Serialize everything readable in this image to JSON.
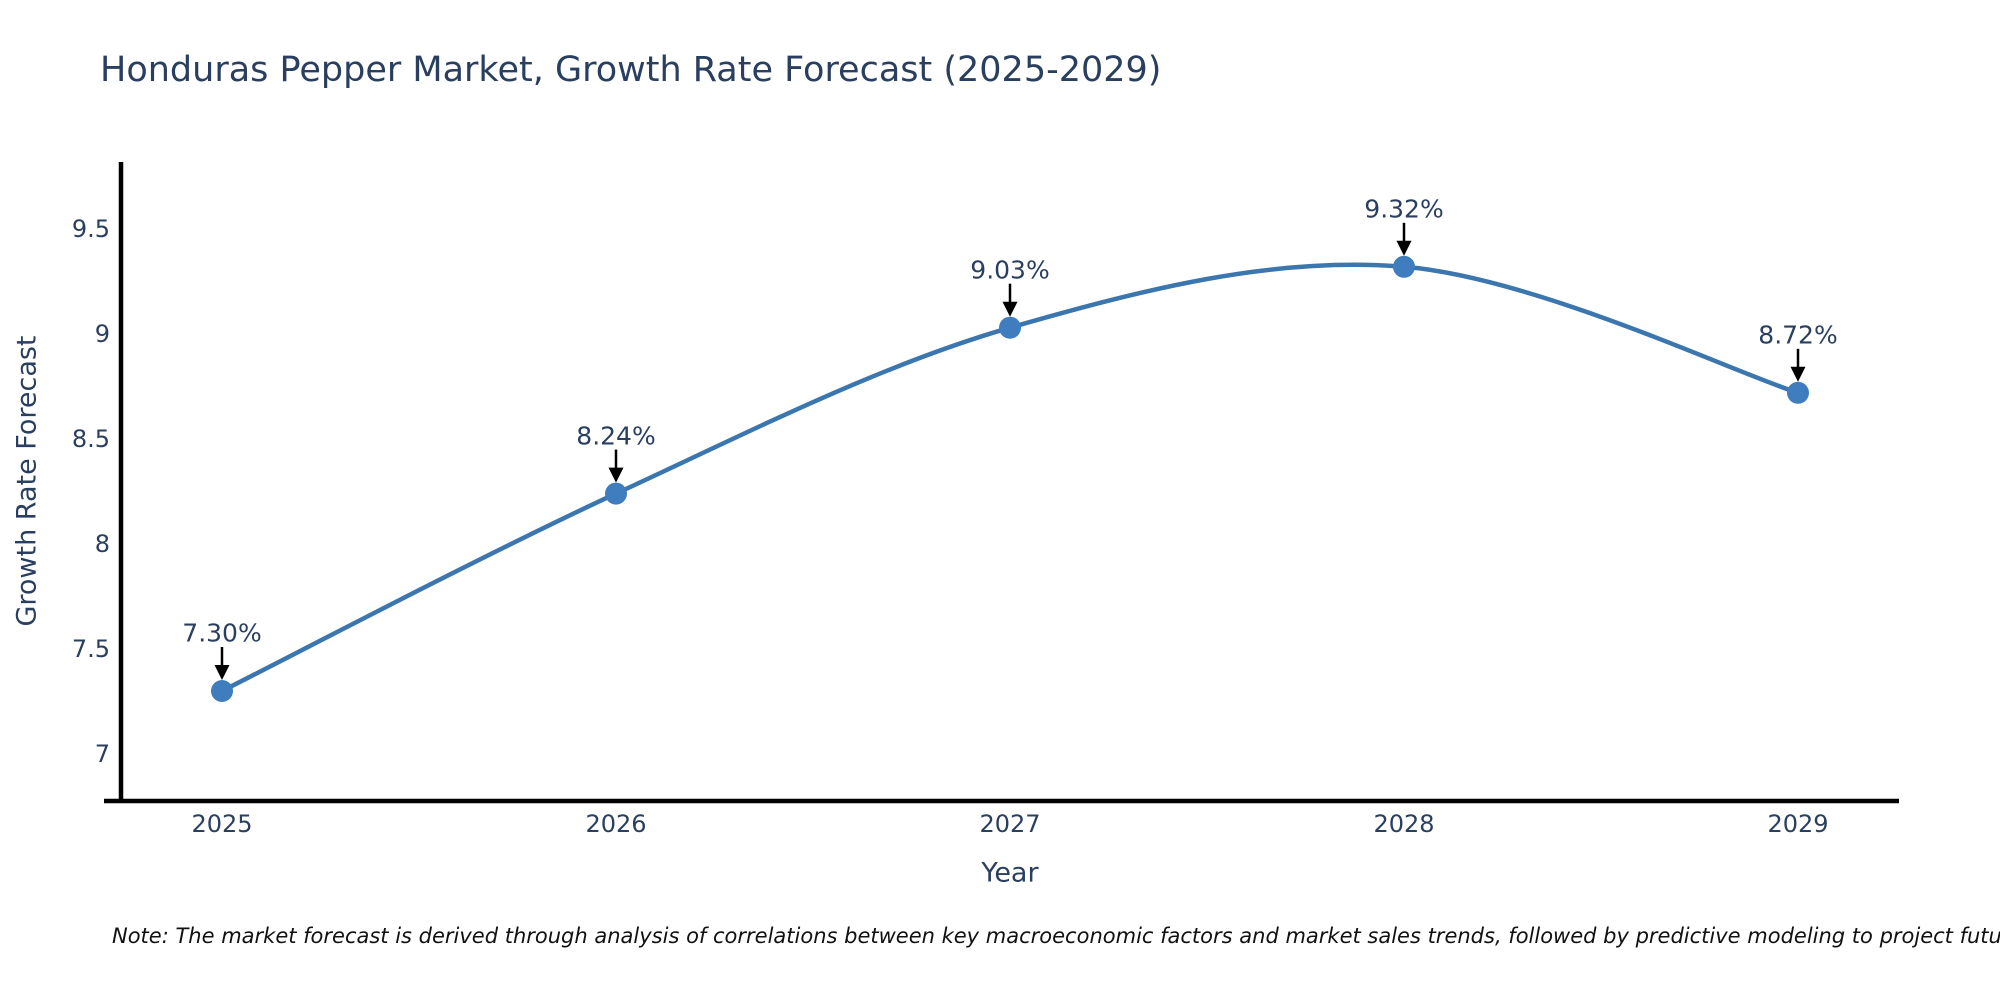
{
  "note": "Note: The market forecast is derived through analysis of correlations between key macroeconomic factors and market sales trends, followed by predictive modeling to project future sales",
  "colors": {
    "font": "#2a3f5f",
    "axis_line": "#000000",
    "series_line": "#3b76af",
    "marker_fill": "#3f7dbe",
    "annotation_arrow": "#000000",
    "annotation_text": "#2a3f5f",
    "note_text": "#111111",
    "background": "#ffffff"
  },
  "chart_data": {
    "type": "line",
    "title": "Honduras Pepper Market, Growth Rate Forecast (2025-2029)",
    "xlabel": "Year",
    "ylabel": "Growth Rate Forecast",
    "x": [
      2025,
      2026,
      2027,
      2028,
      2029
    ],
    "series": [
      {
        "name": "Growth Rate Forecast",
        "values": [
          7.3,
          8.24,
          9.03,
          9.32,
          8.72
        ]
      }
    ],
    "point_labels": [
      "7.30%",
      "8.24%",
      "9.03%",
      "9.32%",
      "8.72%"
    ],
    "yticks": [
      7,
      7.5,
      8,
      8.5,
      9,
      9.5
    ],
    "xlim": [
      2024.74,
      2029.26
    ],
    "ylim": [
      6.78,
      9.82
    ],
    "grid": false,
    "legend_position": "none",
    "line_shape": "spline",
    "annotations": "value labels with downward arrows above each point"
  }
}
